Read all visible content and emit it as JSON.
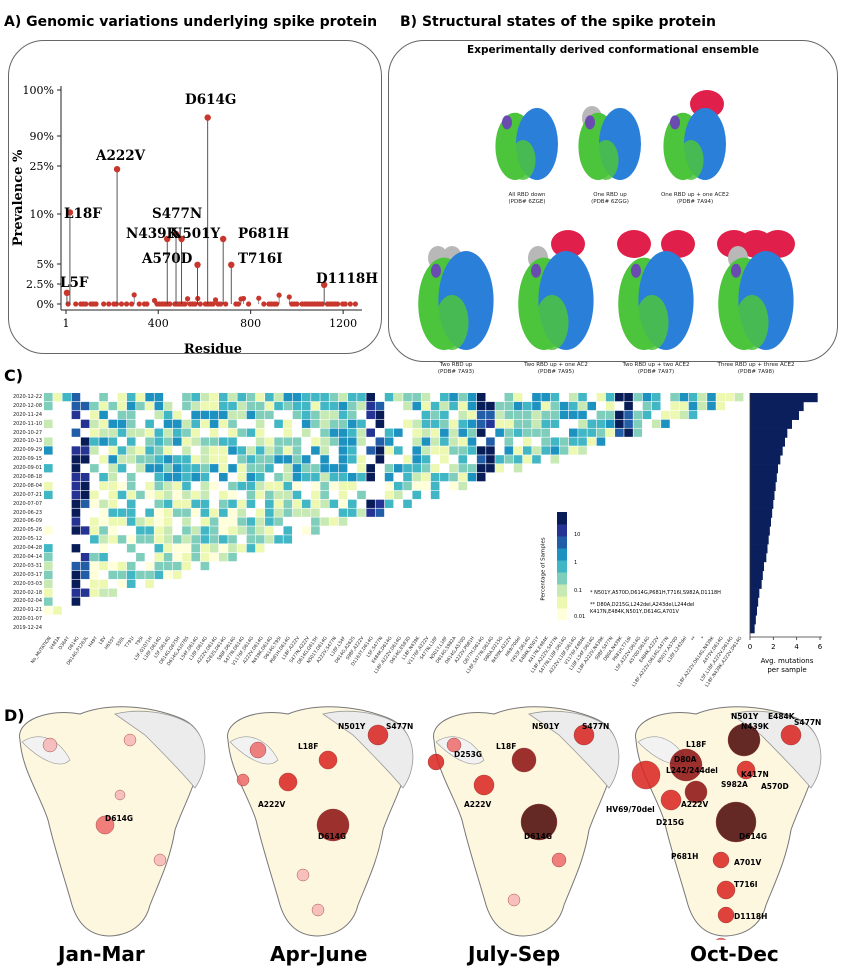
{
  "panelA": {
    "title": "A)  Genomic variations underlying spike protein",
    "ylabel": "Prevalence %",
    "xlabel": "Residue"
  },
  "panelB": {
    "title": "B)   Structural states of  the spike protein",
    "subtitle": "Experimentally derived conformational ensemble",
    "structures": [
      {
        "caption": "All RBD down",
        "pdb": "(PDB# 6ZGE)",
        "red": 0,
        "grey": 0
      },
      {
        "caption": "One RBD up",
        "pdb": "(PDB# 6ZGG)",
        "red": 0,
        "grey": 1
      },
      {
        "caption": "One RBD up + one ACE2",
        "pdb": "(PDB# 7A94)",
        "red": 1,
        "grey": 0
      },
      {
        "caption": "Two RBD up",
        "pdb": "(PDB# 7A93)",
        "red": 0,
        "grey": 2
      },
      {
        "caption": "Two RBD up + one AC2",
        "pdb": "(PDB# 7A95)",
        "red": 1,
        "grey": 1
      },
      {
        "caption": "Two RBD up + two ACE2",
        "pdb": "(PDB# 7A97)",
        "red": 2,
        "grey": 0
      },
      {
        "caption": "Three RBD up + three ACE2",
        "pdb": "(PDB# 7A98)",
        "red": 3,
        "grey": 1
      }
    ],
    "colors": {
      "green": "#4cc43c",
      "blue": "#2a7fd8",
      "red": "#e0204a",
      "grey": "#b8b8b8",
      "purple": "#6a4bb0"
    }
  },
  "panelC": {
    "title": "C)",
    "colorbar_label": "Percentage of Samples",
    "colorbar_ticks": [
      "10",
      "1",
      "0.1",
      "0.01"
    ],
    "footnote1": "* N501Y,A570D,D614G,P681H,T716I,S982A,D1118H",
    "footnote2": "** D80A,D215G,L242del,A243del,L244del K417N,E484K,N501Y,D614G,A701V",
    "bar_xlabel": "Avg. mutations per sample",
    "bar_ticks": [
      "0",
      "2",
      "4",
      "6"
    ],
    "dates": [
      "2020-12-22",
      "2020-12-08",
      "2020-11-24",
      "2020-11-10",
      "2020-10-27",
      "2020-10-13",
      "2020-09-29",
      "2020-09-15",
      "2020-09-01",
      "2020-08-18",
      "2020-08-04",
      "2020-07-21",
      "2020-07-07",
      "2020-06-23",
      "2020-06-09",
      "2020-05-26",
      "2020-05-12",
      "2020-04-28",
      "2020-04-14",
      "2020-03-31",
      "2020-03-17",
      "2020-03-03",
      "2020-02-18",
      "2020-02-04",
      "2020-01-21",
      "2020-01-07",
      "2019-12-24"
    ],
    "categories": [
      "No_MUTATION",
      "V483A",
      "D364Y",
      "D614G",
      "D614G,P1263L",
      "H49Y",
      "L8V",
      "H655Y",
      "S50L",
      "T791I",
      "T95I",
      "L5F,Q1071H",
      "L18F,D614G",
      "L5F,D614G",
      "D614G,Q675H",
      "D614G,A1078S",
      "L54F,D614G",
      "L18F,D614G",
      "A222V,D614G",
      "A262S,D614G",
      "S98F,D614G",
      "S477N,D614G",
      "V1176F,D614G",
      "A222V,D614G",
      "N439K,D614G",
      "D614G,T95I",
      "P681H,D614G",
      "L18F,A222V",
      "S477N,A222V",
      "D614G,Q613H",
      "N501Y,D614G",
      "A222V,S477N",
      "L18F,L54F",
      "D614G,A262S",
      "S98F,A222V",
      "D1163Y,D614G",
      "L5F,S477N",
      "E484K,D614G",
      "L18F,A222V,D614G",
      "D614G,E583D",
      "L18F,N439K",
      "V1176F,A222V",
      "S477N,L18F",
      "N501Y,L18F",
      "D614G,S982A",
      "D614G,A570D",
      "A222V,P681H",
      "Q677H,D614G",
      "L18F,S477N,D614G",
      "D80A,D215G",
      "N439K,A222V",
      "H69/70del",
      "Y453F,D614G",
      "E484K,N501Y",
      "K417N,E484K",
      "L18F,A222V,S477N",
      "S477N,L18F,D614G",
      "A222V,L18F,D614G",
      "V1176F,E484K",
      "L18F,L54F,D614G",
      "L18F,A222V,N439K",
      "S98F,S477N",
      "D80A,N439K",
      "P681H,T716I",
      "L5F,A222V,D614G",
      "A570D,D614G",
      "E484K,A222V",
      "L18F,A222V,D614G,S477N",
      "N501Y,A570D",
      "L18F,L242del",
      "**",
      "*",
      "L18F,A222V,D614G,N439K",
      "A475V,D614G",
      "L5F,L18F,A222V,D614G",
      "L18F,N439K,A222V,D614G"
    ],
    "colorscale": [
      "#ffffd9",
      "#edf8b1",
      "#c7e9b4",
      "#7fcdbb",
      "#41b6c4",
      "#1d91c0",
      "#225ea8",
      "#253494",
      "#081d58"
    ]
  },
  "panelD": {
    "title": "D)",
    "quarters": [
      {
        "name": "Jan-Mar",
        "labels": [
          {
            "t": "D614G"
          }
        ]
      },
      {
        "name": "Apr-June",
        "labels": [
          {
            "t": "N501Y"
          },
          {
            "t": "S477N"
          },
          {
            "t": "L18F"
          },
          {
            "t": "A222V"
          },
          {
            "t": "D614G"
          }
        ]
      },
      {
        "name": "July-Sep",
        "labels": [
          {
            "t": "N501Y"
          },
          {
            "t": "S477N"
          },
          {
            "t": "L18F"
          },
          {
            "t": "D253G"
          },
          {
            "t": "A222V"
          },
          {
            "t": "D614G"
          }
        ]
      },
      {
        "name": "Oct-Dec",
        "labels": [
          {
            "t": "N501Y"
          },
          {
            "t": "E484K"
          },
          {
            "t": "S477N"
          },
          {
            "t": "N439K"
          },
          {
            "t": "L18F"
          },
          {
            "t": "K417N"
          },
          {
            "t": "D80A"
          },
          {
            "t": "L242/244del"
          },
          {
            "t": "S982A"
          },
          {
            "t": "A570D"
          },
          {
            "t": "HV69/70del"
          },
          {
            "t": "A222V"
          },
          {
            "t": "D215G"
          },
          {
            "t": "D614G"
          },
          {
            "t": "P681H"
          },
          {
            "t": "A701V"
          },
          {
            "t": "T716I"
          },
          {
            "t": "D1118H"
          }
        ]
      }
    ]
  },
  "chart_data": [
    {
      "type": "scatter",
      "title": "Genomic variations underlying spike protein",
      "xlabel": "Residue",
      "ylabel": "Prevalence %",
      "xticks": [
        "1",
        "400",
        "800",
        "1200"
      ],
      "yticks": [
        "0%",
        "2.5%",
        "5%",
        "10%",
        "25%",
        "90%",
        "100%"
      ],
      "points": [
        {
          "residue": 614,
          "prevalence": 94,
          "label": "D614G"
        },
        {
          "residue": 222,
          "prevalence": 24,
          "label": "A222V"
        },
        {
          "residue": 18,
          "prevalence": 10.5,
          "label": "L18F"
        },
        {
          "residue": 477,
          "prevalence": 8,
          "label": "S477N"
        },
        {
          "residue": 439,
          "prevalence": 7.5,
          "label": "N439K"
        },
        {
          "residue": 501,
          "prevalence": 7.5,
          "label": "N501Y"
        },
        {
          "residue": 681,
          "prevalence": 7.5,
          "label": "P681H"
        },
        {
          "residue": 570,
          "prevalence": 4.9,
          "label": "A570D"
        },
        {
          "residue": 716,
          "prevalence": 4.9,
          "label": "T716I"
        },
        {
          "residue": 5,
          "prevalence": 1.4,
          "label": "L5F"
        },
        {
          "residue": 1118,
          "prevalence": 2.4,
          "label": "D1118H"
        }
      ]
    },
    {
      "type": "bar",
      "title": "",
      "xlabel": "Avg. mutations per sample",
      "categories": [
        "2020-12-22",
        "2020-12-08",
        "2020-11-24",
        "2020-11-10",
        "2020-10-27",
        "2020-10-13",
        "2020-09-29",
        "2020-09-15",
        "2020-09-01",
        "2020-08-18",
        "2020-08-04",
        "2020-07-21",
        "2020-07-07",
        "2020-06-23",
        "2020-06-09",
        "2020-05-26",
        "2020-05-12",
        "2020-04-28",
        "2020-04-14",
        "2020-03-31",
        "2020-03-17",
        "2020-03-03",
        "2020-02-18",
        "2020-02-04",
        "2020-01-21",
        "2020-01-07",
        "2019-12-24"
      ],
      "values": [
        5.8,
        4.6,
        4.2,
        3.6,
        3.2,
        3.0,
        2.8,
        2.6,
        2.4,
        2.3,
        2.2,
        2.1,
        2.0,
        1.9,
        1.8,
        1.7,
        1.6,
        1.5,
        1.4,
        1.2,
        1.1,
        1.0,
        0.8,
        0.7,
        0.6,
        0.5,
        0.4
      ],
      "xlim": [
        0,
        6
      ]
    }
  ]
}
